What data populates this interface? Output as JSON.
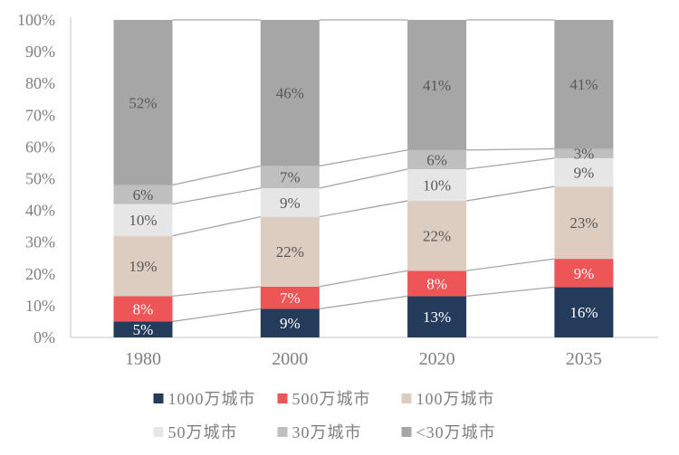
{
  "chart_data": {
    "type": "bar",
    "subtype": "stacked-100",
    "title": "",
    "xlabel": "",
    "ylabel": "",
    "categories": [
      "1980",
      "2000",
      "2020",
      "2035"
    ],
    "series": [
      {
        "name": "1000万城市",
        "color": "#253B5C",
        "label_color": "#ffffff",
        "values": [
          5,
          9,
          13,
          16
        ]
      },
      {
        "name": "500万城市",
        "color": "#ED5556",
        "label_color": "#ffffff",
        "values": [
          8,
          7,
          8,
          9
        ]
      },
      {
        "name": "100万城市",
        "color": "#DDCCC0",
        "label_color": "#595959",
        "values": [
          19,
          22,
          22,
          23
        ]
      },
      {
        "name": "50万城市",
        "color": "#E7E6E6",
        "label_color": "#595959",
        "values": [
          10,
          9,
          10,
          9
        ]
      },
      {
        "name": "30万城市",
        "color": "#BFBFBF",
        "label_color": "#595959",
        "values": [
          6,
          7,
          6,
          3
        ]
      },
      {
        "name": "<30万城市",
        "color": "#A6A6A6",
        "label_color": "#595959",
        "values": [
          52,
          46,
          41,
          41
        ]
      }
    ],
    "value_suffix": "%",
    "y_axis": {
      "min": 0,
      "max": 100,
      "ticks": [
        "0%",
        "10%",
        "20%",
        "30%",
        "40%",
        "50%",
        "60%",
        "70%",
        "80%",
        "90%",
        "100%"
      ]
    },
    "grid": "off",
    "legend_position": "bottom",
    "legend_rows": [
      [
        0,
        1,
        2
      ],
      [
        3,
        4,
        5
      ]
    ],
    "colors": {
      "axis_line": "#D9D9D9",
      "connector_line": "#A6A6A6",
      "tick_label": "#7F7F7F",
      "category_label": "#7F7F7F",
      "legend_text": "#7F7F7F",
      "background": "#FFFFFF"
    }
  }
}
